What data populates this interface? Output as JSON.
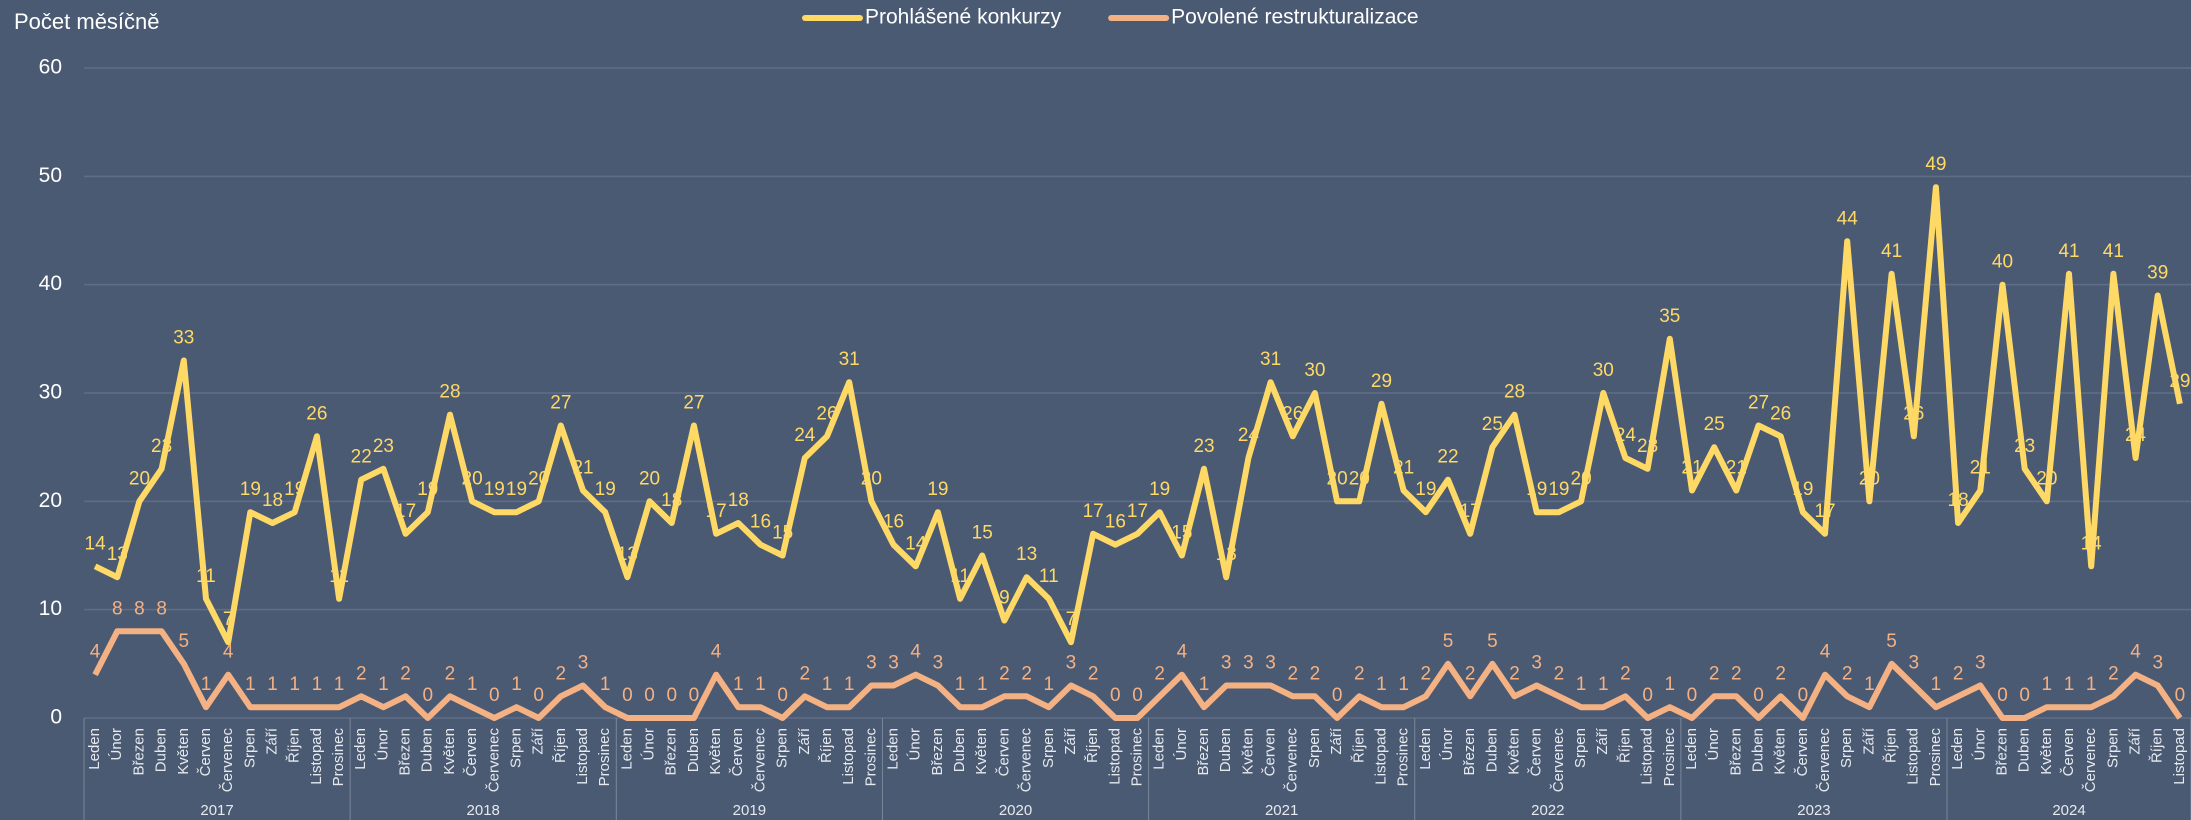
{
  "chart_data": {
    "type": "line",
    "title": "Počet měsíčně",
    "categories": [
      "Leden",
      "Únor",
      "Březen",
      "Duben",
      "Květen",
      "Červen",
      "Červenec",
      "Srpen",
      "Září",
      "Říjen",
      "Listopad",
      "Prosinec",
      "Leden",
      "Únor",
      "Březen",
      "Duben",
      "Květen",
      "Červen",
      "Červenec",
      "Srpen",
      "Září",
      "Říjen",
      "Listopad",
      "Prosinec",
      "Leden",
      "Únor",
      "Březen",
      "Duben",
      "Květen",
      "Červen",
      "Červenec",
      "Srpen",
      "Září",
      "Říjen",
      "Listopad",
      "Prosinec",
      "Leden",
      "Únor",
      "Březen",
      "Duben",
      "Květen",
      "Červen",
      "Červenec",
      "Srpen",
      "Září",
      "Říjen",
      "Listopad",
      "Prosinec",
      "Leden",
      "Únor",
      "Březen",
      "Duben",
      "Květen",
      "Červen",
      "Červenec",
      "Srpen",
      "Září",
      "Říjen",
      "Listopad",
      "Prosinec",
      "Leden",
      "Únor",
      "Březen",
      "Duben",
      "Květen",
      "Červen",
      "Červenec",
      "Srpen",
      "Září",
      "Říjen",
      "Listopad",
      "Prosinec",
      "Leden",
      "Únor",
      "Březen",
      "Duben",
      "Květen",
      "Červen",
      "Červenec",
      "Srpen",
      "Září",
      "Říjen",
      "Listopad",
      "Prosinec",
      "Leden",
      "Únor",
      "Březen",
      "Duben",
      "Květen",
      "Červen",
      "Červenec",
      "Srpen",
      "Září",
      "Říjen",
      "Listopad"
    ],
    "groups": [
      {
        "label": "2017",
        "count": 12
      },
      {
        "label": "2018",
        "count": 12
      },
      {
        "label": "2019",
        "count": 12
      },
      {
        "label": "2020",
        "count": 12
      },
      {
        "label": "2021",
        "count": 12
      },
      {
        "label": "2022",
        "count": 12
      },
      {
        "label": "2023",
        "count": 12
      },
      {
        "label": "2024",
        "count": 11
      }
    ],
    "series": [
      {
        "name": "Prohlášené konkurzy",
        "color": "#ffd966",
        "values": [
          14,
          13,
          20,
          23,
          33,
          11,
          7,
          19,
          18,
          19,
          26,
          11,
          22,
          23,
          17,
          19,
          28,
          20,
          19,
          19,
          20,
          27,
          21,
          19,
          13,
          20,
          18,
          27,
          17,
          18,
          16,
          15,
          24,
          26,
          31,
          20,
          16,
          14,
          19,
          11,
          15,
          9,
          13,
          11,
          7,
          17,
          16,
          17,
          19,
          15,
          23,
          13,
          24,
          31,
          26,
          30,
          20,
          20,
          29,
          21,
          19,
          22,
          17,
          25,
          28,
          19,
          19,
          20,
          30,
          24,
          23,
          35,
          21,
          25,
          21,
          27,
          26,
          19,
          17,
          44,
          20,
          41,
          26,
          49,
          18,
          21,
          40,
          23,
          20,
          41,
          14,
          41,
          24,
          39,
          29
        ]
      },
      {
        "name": "Povolené restrukturalizace",
        "color": "#f4b183",
        "values": [
          4,
          8,
          8,
          8,
          5,
          1,
          4,
          1,
          1,
          1,
          1,
          1,
          2,
          1,
          2,
          0,
          2,
          1,
          0,
          1,
          0,
          2,
          3,
          1,
          0,
          0,
          0,
          0,
          4,
          1,
          1,
          0,
          2,
          1,
          1,
          3,
          3,
          4,
          3,
          1,
          1,
          2,
          2,
          1,
          3,
          2,
          0,
          0,
          2,
          4,
          1,
          3,
          3,
          3,
          2,
          2,
          0,
          2,
          1,
          1,
          2,
          5,
          2,
          5,
          2,
          3,
          2,
          1,
          1,
          2,
          0,
          1,
          0,
          2,
          2,
          0,
          2,
          0,
          4,
          2,
          1,
          5,
          3,
          1,
          2,
          3,
          0,
          0,
          1,
          1,
          1,
          2,
          4,
          3,
          0
        ]
      }
    ],
    "ylim": [
      0,
      60
    ],
    "yticks": [
      0,
      10,
      20,
      30,
      40,
      50,
      60
    ],
    "grid": true,
    "legend": "top"
  }
}
